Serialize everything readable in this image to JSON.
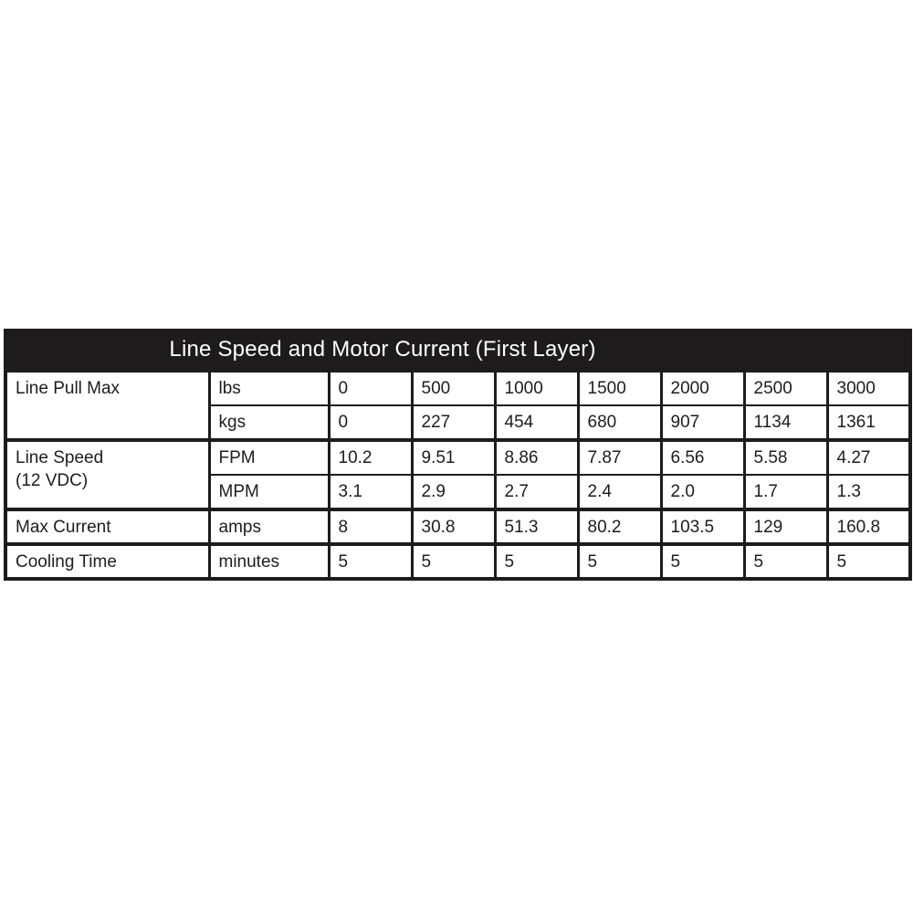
{
  "colors": {
    "header_bg": "#1d1b1b",
    "header_text": "#ffffff",
    "line": "#1d1b1b",
    "cell_text": "#1d1d1f"
  },
  "chart_data": {
    "type": "table",
    "title": "Line Speed and Motor Current (First Layer)",
    "rows": [
      {
        "label": "Line Pull Max",
        "unit": "lbs",
        "values": [
          "0",
          "500",
          "1000",
          "1500",
          "2000",
          "2500",
          "3000"
        ]
      },
      {
        "unit": "kgs",
        "values": [
          "0",
          "227",
          "454",
          "680",
          "907",
          "1134",
          "1361"
        ]
      },
      {
        "label": "Line Speed\n(12 VDC)",
        "unit": "FPM",
        "values": [
          "10.2",
          "9.51",
          "8.86",
          "7.87",
          "6.56",
          "5.58",
          "4.27"
        ]
      },
      {
        "unit": "MPM",
        "values": [
          "3.1",
          "2.9",
          "2.7",
          "2.4",
          "2.0",
          "1.7",
          "1.3"
        ]
      },
      {
        "label": "Max Current",
        "unit": "amps",
        "values": [
          "8",
          "30.8",
          "51.3",
          "80.2",
          "103.5",
          "129",
          "160.8"
        ]
      },
      {
        "label": "Cooling Time",
        "unit": "minutes",
        "values": [
          "5",
          "5",
          "5",
          "5",
          "5",
          "5",
          "5"
        ]
      }
    ]
  }
}
